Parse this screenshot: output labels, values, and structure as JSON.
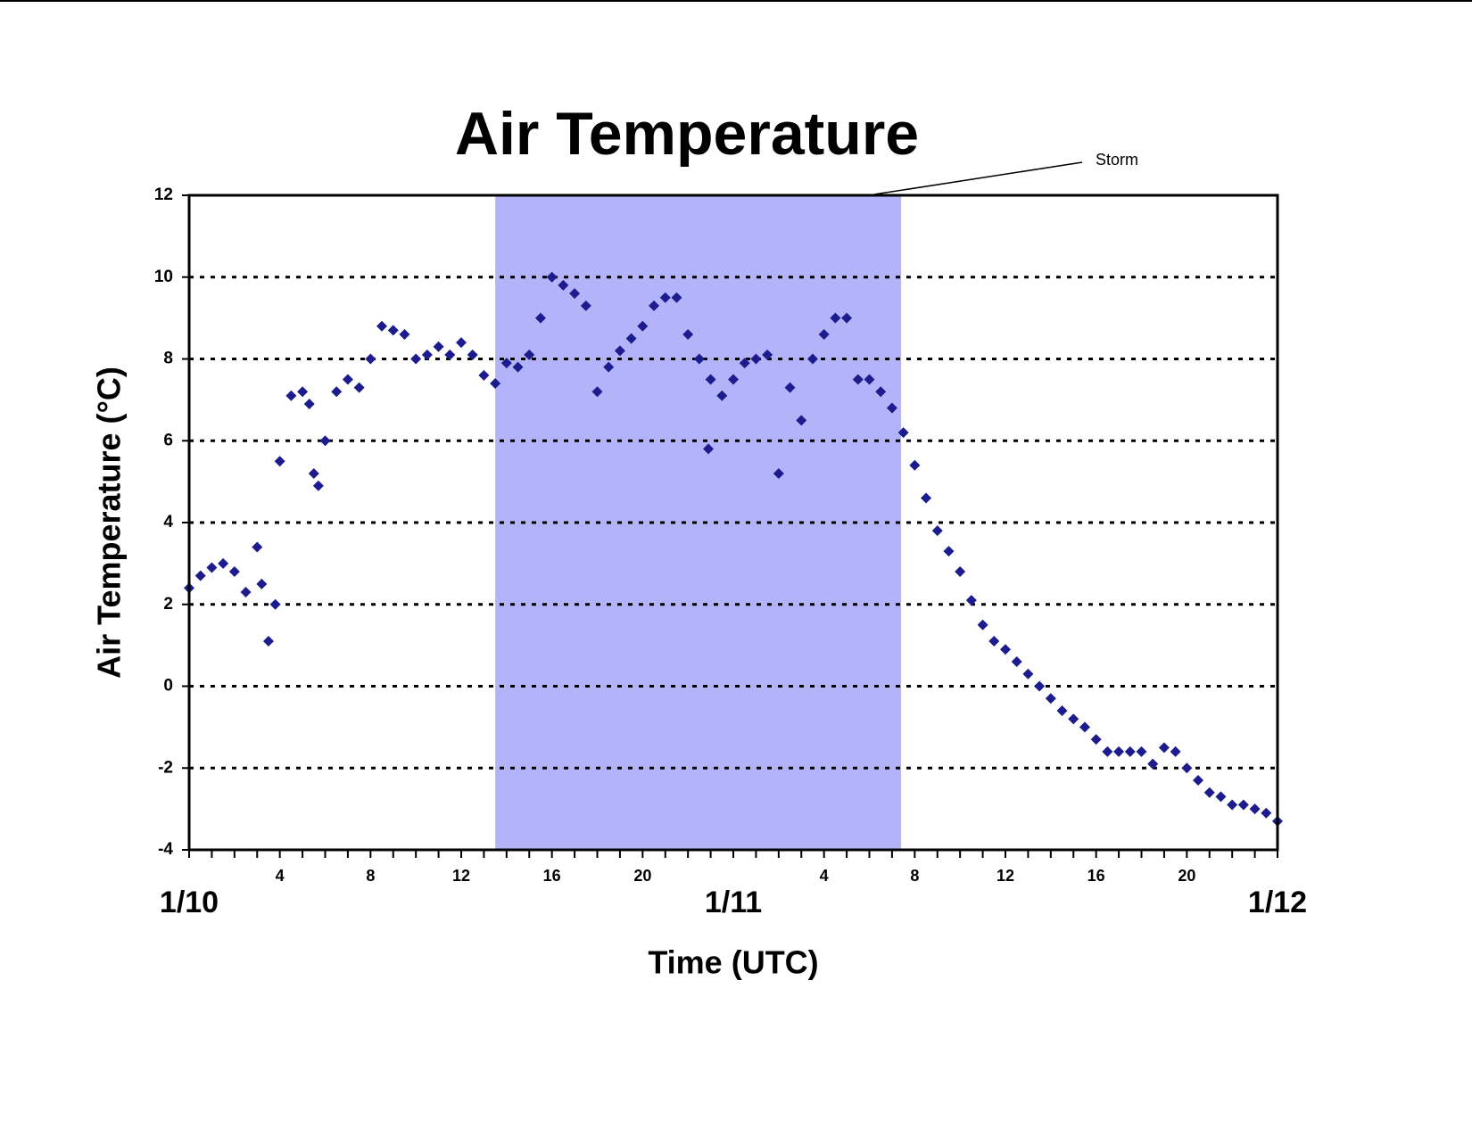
{
  "chart_data": {
    "type": "scatter",
    "title": "Air Temperature",
    "xlabel": "Time (UTC)",
    "ylabel": "Air Temperature (°C)",
    "annotation": {
      "text": "Storm",
      "span": [
        13.5,
        31.4
      ],
      "color": "#b3b3fa"
    },
    "color": "#1c1c8e",
    "xlim": [
      0,
      48
    ],
    "ylim": [
      -4,
      12
    ],
    "yticks": [
      -4,
      -2,
      0,
      2,
      4,
      6,
      8,
      10,
      12
    ],
    "xticks": [
      4,
      8,
      12,
      16,
      20,
      {
        "value": 28,
        "label": "4"
      },
      {
        "value": 32,
        "label": "8"
      },
      {
        "value": 36,
        "label": "12"
      },
      {
        "value": 40,
        "label": "16"
      },
      {
        "value": 44,
        "label": "20"
      }
    ],
    "date_ticks": [
      {
        "value": 0,
        "label": "1/10"
      },
      {
        "value": 24,
        "label": "1/11"
      },
      {
        "value": 48,
        "label": "1/12"
      }
    ],
    "xminorticks": [
      0,
      1,
      2,
      3,
      4,
      5,
      6,
      7,
      8,
      9,
      10,
      11,
      12,
      13,
      14,
      15,
      16,
      17,
      18,
      19,
      20,
      21,
      22,
      23,
      24,
      25,
      26,
      27,
      28,
      29,
      30,
      31,
      32,
      33,
      34,
      35,
      36,
      37,
      38,
      39,
      40,
      41,
      42,
      43,
      44,
      45,
      46,
      47,
      48
    ],
    "grid": true,
    "x": [
      0,
      0.5,
      1,
      1.5,
      2,
      2.5,
      3,
      3.2,
      3.5,
      3.8,
      4,
      4.5,
      5,
      5.3,
      5.5,
      5.7,
      6,
      6.5,
      7,
      7.5,
      8,
      8.5,
      9,
      9.5,
      10,
      10.5,
      11,
      11.5,
      12,
      12.5,
      13,
      13.5,
      14,
      14.5,
      15,
      15.5,
      16,
      16.5,
      17,
      17.5,
      18,
      18.5,
      19,
      19.5,
      20,
      20.5,
      21,
      21.5,
      22,
      22.5,
      22.9,
      23,
      23.5,
      24,
      24.5,
      25,
      25.5,
      26,
      26.5,
      27,
      27.5,
      28,
      28.5,
      29,
      29.5,
      30,
      30.5,
      31,
      31.5,
      32,
      32.5,
      33,
      33.5,
      34,
      34.5,
      35,
      35.5,
      36,
      36.5,
      37,
      37.5,
      38,
      38.5,
      39,
      39.5,
      40,
      40.5,
      41,
      41.5,
      42,
      42.5,
      43,
      43.5,
      44,
      44.5,
      45,
      45.5,
      46,
      46.5,
      47,
      47.5,
      48
    ],
    "values": [
      2.4,
      2.7,
      2.9,
      3.0,
      2.8,
      2.3,
      3.4,
      2.5,
      1.1,
      2.0,
      5.5,
      7.1,
      7.2,
      6.9,
      5.2,
      4.9,
      6.0,
      7.2,
      7.5,
      7.3,
      8.0,
      8.8,
      8.7,
      8.6,
      8.0,
      8.1,
      8.3,
      8.1,
      8.4,
      8.1,
      7.6,
      7.4,
      7.9,
      7.8,
      8.1,
      9.0,
      10.0,
      9.8,
      9.6,
      9.3,
      7.2,
      7.8,
      8.2,
      8.5,
      8.8,
      9.3,
      9.5,
      9.5,
      8.6,
      8.0,
      5.8,
      7.5,
      7.1,
      7.5,
      7.9,
      8.0,
      8.1,
      5.2,
      7.3,
      6.5,
      8.0,
      8.6,
      9.0,
      9.0,
      7.5,
      7.5,
      7.2,
      6.8,
      6.2,
      5.4,
      4.6,
      3.8,
      3.3,
      2.8,
      2.1,
      1.5,
      1.1,
      0.9,
      0.6,
      0.3,
      0.0,
      -0.3,
      -0.6,
      -0.8,
      -1.0,
      -1.3,
      -1.6,
      -1.6,
      -1.6,
      -1.6,
      -1.9,
      -1.5,
      -1.6,
      -2.0,
      -2.3,
      -2.6,
      -2.7,
      -2.9,
      -2.9,
      -3.0,
      -3.1,
      -3.3
    ]
  }
}
